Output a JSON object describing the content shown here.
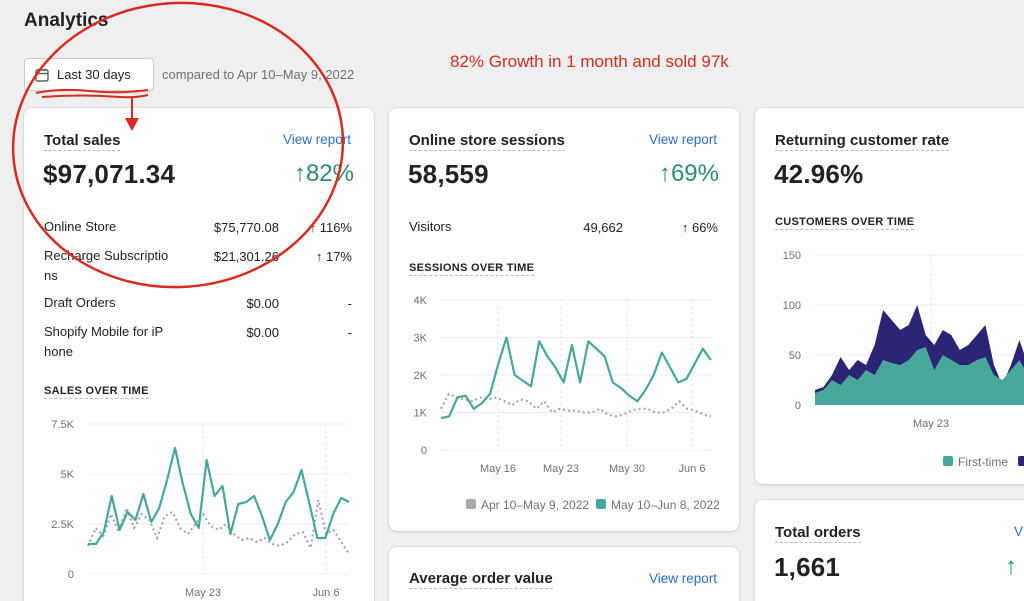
{
  "header": {
    "title": "Analytics",
    "date_range_label": "Last 30 days",
    "compare_text": "compared to Apr 10–May 9, 2022"
  },
  "annotation": {
    "text": "82% Growth in 1 month and sold 97k",
    "color": "#d72c21"
  },
  "colors": {
    "teal": "#47a79b",
    "gray_dotted": "#a4a7ab",
    "navy": "#2c2474",
    "positive": "#2a8e6e",
    "link": "#2c6ecb"
  },
  "total_sales": {
    "title": "Total sales",
    "view_report": "View report",
    "value": "$97,071.34",
    "change": "↑82%",
    "rows": [
      {
        "label": "Online Store",
        "value": "$75,770.08",
        "change": "↑ 116%"
      },
      {
        "label": "Recharge Subscriptio ns",
        "value": "$21,301.26",
        "change": "↑ 17%"
      },
      {
        "label": "Draft Orders",
        "value": "$0.00",
        "change": "-"
      },
      {
        "label": "Shopify Mobile for iP hone",
        "value": "$0.00",
        "change": "-"
      }
    ],
    "chart_title": "SALES OVER TIME"
  },
  "sessions": {
    "title": "Online store sessions",
    "view_report": "View report",
    "value": "58,559",
    "change": "↑69%",
    "rows": [
      {
        "label": "Visitors",
        "value": "49,662",
        "change": "↑ 66%"
      }
    ],
    "chart_title": "SESSIONS OVER TIME"
  },
  "returning": {
    "title": "Returning customer rate",
    "value": "42.96%",
    "chart_title": "CUSTOMERS OVER TIME"
  },
  "aov": {
    "title": "Average order value",
    "view_report": "View report"
  },
  "orders": {
    "title": "Total orders",
    "view_report": "V",
    "value": "1,661",
    "change": "↑"
  },
  "chart_data": [
    {
      "type": "line",
      "title": "SALES OVER TIME",
      "x_ticks": [
        "May 23",
        "Jun 6"
      ],
      "y_ticks": [
        "0",
        "2.5K",
        "5K",
        "7.5K"
      ],
      "ylim": [
        0,
        7500
      ],
      "series": [
        {
          "values": [
            1500,
            1500,
            2100,
            3900,
            2200,
            3100,
            2700,
            4000,
            2600,
            3300,
            4700,
            6300,
            4500,
            3000,
            2300,
            5700,
            3900,
            4400,
            2000,
            3500,
            3600,
            3900,
            2900,
            1700,
            2500,
            3600,
            4100,
            5200,
            3500,
            1800,
            1800,
            3000,
            3800,
            3600
          ]
        },
        {
          "values": [
            1400,
            2300,
            1900,
            3000,
            2100,
            3300,
            2300,
            3000,
            2700,
            1800,
            2900,
            3100,
            2300,
            2000,
            2500,
            3000,
            2400,
            2200,
            2500,
            2000,
            1700,
            1800,
            1600,
            1800,
            1500,
            1400,
            1600,
            2000,
            2100,
            1300,
            3700,
            2000,
            2200,
            1600,
            1000
          ]
        }
      ]
    },
    {
      "type": "line",
      "title": "SESSIONS OVER TIME",
      "x_ticks": [
        "May 16",
        "May 23",
        "May 30",
        "Jun 6"
      ],
      "y_ticks": [
        "0",
        "1K",
        "2K",
        "3K",
        "4K"
      ],
      "ylim": [
        0,
        4000
      ],
      "legend": [
        "Apr 10–May 9, 2022",
        "May 10–Jun 8, 2022"
      ],
      "series": [
        {
          "name": "Apr 10–May 9, 2022",
          "values": [
            1100,
            1500,
            1400,
            1350,
            1300,
            1400,
            1350,
            1400,
            1300,
            1200,
            1350,
            1300,
            1100,
            1300,
            1000,
            1100,
            1050,
            1050,
            1000,
            1000,
            1100,
            950,
            900,
            950,
            1050,
            1100,
            1100,
            1000,
            1000,
            1100,
            1300,
            1100,
            1050,
            950,
            900
          ]
        },
        {
          "name": "May 10–Jun 8, 2022",
          "values": [
            850,
            900,
            1400,
            1450,
            1100,
            1250,
            1500,
            2300,
            3000,
            2000,
            1850,
            1700,
            2900,
            2500,
            2200,
            1800,
            2800,
            1800,
            2900,
            2700,
            2500,
            1800,
            1650,
            1450,
            1300,
            1600,
            2000,
            2600,
            2200,
            1800,
            1900,
            2300,
            2700,
            2400
          ]
        }
      ]
    },
    {
      "type": "area",
      "title": "CUSTOMERS OVER TIME",
      "x_ticks": [
        "May 23"
      ],
      "y_ticks": [
        "0",
        "50",
        "100",
        "150"
      ],
      "ylim": [
        0,
        150
      ],
      "legend": [
        "First-time"
      ],
      "series": [
        {
          "name": "First-time",
          "values": [
            12,
            15,
            25,
            20,
            30,
            25,
            35,
            30,
            45,
            42,
            40,
            45,
            55,
            58,
            35,
            50,
            45,
            40,
            40,
            45,
            48,
            30,
            25,
            35,
            45,
            30,
            50,
            55
          ]
        },
        {
          "values": [
            15,
            18,
            30,
            48,
            35,
            45,
            40,
            60,
            95,
            85,
            75,
            80,
            100,
            70,
            60,
            75,
            70,
            55,
            60,
            70,
            80,
            40,
            20,
            40,
            65,
            40,
            60,
            75
          ]
        }
      ]
    }
  ]
}
